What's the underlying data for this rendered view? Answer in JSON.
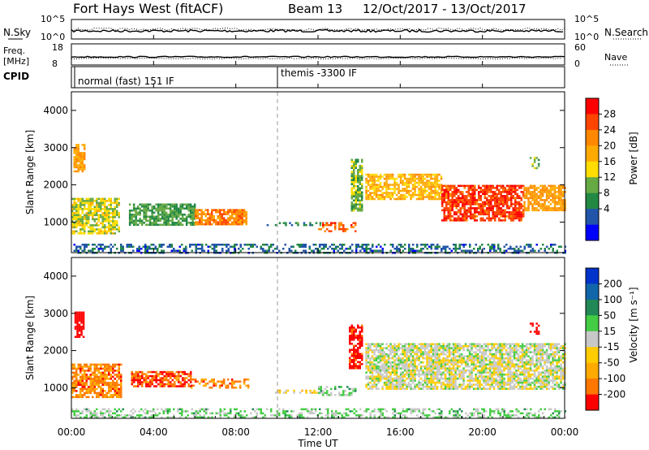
{
  "header": {
    "station": "Fort Hays West (fitACF)",
    "beam": "Beam 13",
    "dates": "12/Oct/2017 - 13/Oct/2017"
  },
  "noise_panel": {
    "left_label": "N.Sky",
    "right_label": "N.Search",
    "left_ticks": [
      "10^5",
      "10^0"
    ],
    "right_ticks": [
      "10^5",
      "10^0"
    ]
  },
  "freq_panel": {
    "left_label_1": "Freq.",
    "left_label_2": "[MHz]",
    "right_label": "Nave",
    "left_ticks": [
      "18",
      "8"
    ],
    "right_ticks": [
      "60",
      "0"
    ]
  },
  "cpid_panel": {
    "label": "CPID",
    "program_1": "normal (fast) 151 IF",
    "program_2": "themis -3300 IF"
  },
  "power_panel": {
    "ylabel": "Slant Range [km]",
    "cbar_label": "Power [dB]",
    "cbar_ticks": [
      "28",
      "24",
      "20",
      "16",
      "12",
      "8",
      "4"
    ],
    "cbar_colors": [
      "#ff0000",
      "#ff4400",
      "#ff8800",
      "#ffaa00",
      "#ffdd00",
      "#66aa44",
      "#228844",
      "#2255aa",
      "#0000ff"
    ]
  },
  "velocity_panel": {
    "ylabel": "Slant Range [km]",
    "cbar_label": "Velocity [m s⁻¹]",
    "cbar_ticks": [
      "200",
      "100",
      "50",
      "15",
      "-15",
      "-50",
      "-100",
      "-200"
    ],
    "cbar_colors": [
      "#0033cc",
      "#1166aa",
      "#228855",
      "#44cc44",
      "#c8c8c8",
      "#ffcc00",
      "#ffaa00",
      "#ff7700",
      "#ff0000"
    ]
  },
  "xaxis": {
    "label": "Time UT",
    "ticks": [
      "00:00",
      "04:00",
      "08:00",
      "12:00",
      "16:00",
      "20:00",
      "00:00"
    ]
  },
  "yaxis_ticks": [
    "1000",
    "2000",
    "3000",
    "4000"
  ],
  "chart_data": [
    {
      "type": "heatmap",
      "title": "Power [dB]",
      "xlabel": "Time UT",
      "ylabel": "Slant Range [km]",
      "xlim": [
        0,
        24
      ],
      "ylim": [
        180,
        4500
      ],
      "zlim": [
        0,
        30
      ],
      "x_unit": "hours UT",
      "regions": [
        {
          "t0": 0.0,
          "t1": 2.3,
          "r0": 700,
          "r1": 1650,
          "value": 14
        },
        {
          "t0": 0.1,
          "t1": 0.6,
          "r0": 2350,
          "r1": 3100,
          "value": 20
        },
        {
          "t0": 2.8,
          "t1": 6.0,
          "r0": 900,
          "r1": 1500,
          "value": 10
        },
        {
          "t0": 6.0,
          "t1": 8.5,
          "r0": 950,
          "r1": 1350,
          "value": 22
        },
        {
          "t0": 9.5,
          "t1": 12.5,
          "r0": 900,
          "r1": 1000,
          "value": 8
        },
        {
          "t0": 12.0,
          "t1": 13.8,
          "r0": 750,
          "r1": 1000,
          "value": 24
        },
        {
          "t0": 13.6,
          "t1": 14.1,
          "r0": 1300,
          "r1": 2700,
          "value": 12
        },
        {
          "t0": 14.3,
          "t1": 18.0,
          "r0": 1600,
          "r1": 2300,
          "value": 18
        },
        {
          "t0": 18.0,
          "t1": 22.0,
          "r0": 1050,
          "r1": 2000,
          "value": 26
        },
        {
          "t0": 22.0,
          "t1": 24.0,
          "r0": 1300,
          "r1": 2000,
          "value": 20
        },
        {
          "t0": 22.3,
          "t1": 22.7,
          "r0": 2450,
          "r1": 2750,
          "value": 12
        },
        {
          "t0": 0.0,
          "t1": 24.0,
          "r0": 180,
          "r1": 420,
          "value": 6
        }
      ]
    },
    {
      "type": "heatmap",
      "title": "Velocity [m s⁻¹]",
      "xlabel": "Time UT",
      "ylabel": "Slant Range [km]",
      "xlim": [
        0,
        24
      ],
      "ylim": [
        180,
        4500
      ],
      "zlim": [
        -200,
        200
      ],
      "x_unit": "hours UT",
      "regions": [
        {
          "t0": 0.0,
          "t1": 2.4,
          "r0": 750,
          "r1": 1650,
          "value": -120
        },
        {
          "t0": 0.15,
          "t1": 0.55,
          "r0": 2350,
          "r1": 3050,
          "value": -200
        },
        {
          "t0": 2.9,
          "t1": 5.8,
          "r0": 1050,
          "r1": 1450,
          "value": -150
        },
        {
          "t0": 5.8,
          "t1": 8.6,
          "r0": 1000,
          "r1": 1250,
          "value": -120
        },
        {
          "t0": 9.8,
          "t1": 12.0,
          "r0": 850,
          "r1": 950,
          "value": -40
        },
        {
          "t0": 12.0,
          "t1": 13.8,
          "r0": 800,
          "r1": 1050,
          "value": 40
        },
        {
          "t0": 13.5,
          "t1": 14.1,
          "r0": 1500,
          "r1": 2700,
          "value": -180
        },
        {
          "t0": 14.3,
          "t1": 24.0,
          "r0": 1000,
          "r1": 2200,
          "value": -5
        },
        {
          "t0": 22.3,
          "t1": 22.7,
          "r0": 2450,
          "r1": 2750,
          "value": -200
        },
        {
          "t0": 0.0,
          "t1": 24.0,
          "r0": 180,
          "r1": 450,
          "value": 30
        }
      ]
    }
  ]
}
